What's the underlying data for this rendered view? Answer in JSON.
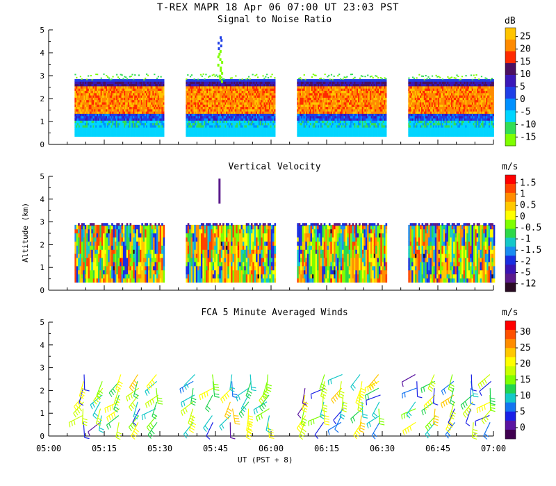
{
  "header": {
    "title": "T-REX   MAPR 18 Apr 06   07:00 UT   23:03   PST"
  },
  "x_axis": {
    "label": "UT  (PST + 8)",
    "range_minutes": [
      0,
      120
    ],
    "tick_labels": [
      "05:00",
      "05:15",
      "05:30",
      "05:45",
      "06:00",
      "06:15",
      "06:30",
      "06:45",
      "07:00"
    ]
  },
  "y_axis_label": "Altitude (km)",
  "colors": {
    "snr": [
      "#7fff00",
      "#33dd55",
      "#00d5ff",
      "#0090ff",
      "#1f3fe6",
      "#3a18b8",
      "#4b1060",
      "#ff2a00",
      "#ff8a00",
      "#ffc400"
    ],
    "vel": [
      "#2a0c24",
      "#5a1a8c",
      "#3a14b4",
      "#1a2ee0",
      "#1a8cf0",
      "#15c8c8",
      "#2ed848",
      "#7fff00",
      "#ffff00",
      "#ffc800",
      "#ff8c00",
      "#ff4400",
      "#ff0000"
    ],
    "wind": [
      "#400050",
      "#5a14a0",
      "#1a20e6",
      "#1474f0",
      "#14c8c8",
      "#20d450",
      "#7fff00",
      "#c8ff00",
      "#ffff00",
      "#ffc800",
      "#ff8c00",
      "#ff5000",
      "#ff0000"
    ]
  },
  "chart_data": [
    {
      "type": "heatmap",
      "title": "Signal to Noise Ratio",
      "xlabel": "UT  (PST + 8)",
      "ylabel": "Altitude (km)",
      "ylim": [
        0,
        5
      ],
      "yticks": [
        0,
        1,
        2,
        3,
        4,
        5
      ],
      "colorbar_unit": "dB",
      "colorbar_labels": [
        "25",
        "20",
        "15",
        "10",
        "5",
        "0",
        "-5",
        "-10",
        "-15"
      ],
      "data_segments_minutes": [
        [
          7,
          31
        ],
        [
          37,
          61
        ],
        [
          67,
          91
        ],
        [
          97,
          121
        ]
      ],
      "data_altitude_range_km": [
        0.35,
        2.8
      ],
      "profile_description_db": [
        {
          "altitude_range_km": [
            0.35,
            1.0
          ],
          "snr_db": -10
        },
        {
          "altitude_range_km": [
            1.0,
            1.3
          ],
          "snr_db": 0
        },
        {
          "altitude_range_km": [
            1.3,
            2.6
          ],
          "snr_db": 15
        },
        {
          "altitude_range_km": [
            2.6,
            2.8
          ],
          "snr_db": 5
        },
        {
          "altitude_range_km": [
            2.8,
            3.0
          ],
          "snr_db": -12
        }
      ]
    },
    {
      "type": "heatmap",
      "title": "Vertical Velocity",
      "xlabel": "UT  (PST + 8)",
      "ylabel": "Altitude (km)",
      "ylim": [
        0,
        5
      ],
      "yticks": [
        0,
        1,
        2,
        3,
        4,
        5
      ],
      "colorbar_unit": "m/s",
      "colorbar_labels": [
        "1.5",
        "1",
        "0.5",
        "0",
        "-0.5",
        "-1",
        "-1.5",
        "-2",
        "-5",
        "-12"
      ],
      "data_segments_minutes": [
        [
          7,
          31
        ],
        [
          37,
          61
        ],
        [
          67,
          91
        ],
        [
          97,
          121
        ]
      ],
      "data_altitude_range_km": [
        0.35,
        2.8
      ],
      "dominant_values_ms": [
        -1.5,
        -0.5,
        0.5
      ]
    },
    {
      "type": "scatter",
      "title": "FCA 5 Minute Averaged Winds",
      "xlabel": "UT  (PST + 8)",
      "ylabel": "Altitude (km)",
      "ylim": [
        0,
        5
      ],
      "yticks": [
        0,
        1,
        2,
        3,
        4,
        5
      ],
      "colorbar_unit": "m/s",
      "colorbar_labels": [
        "30",
        "25",
        "20",
        "15",
        "10",
        "5",
        "0"
      ],
      "wind_barb_times_minutes": [
        10,
        15,
        20,
        25,
        30,
        40,
        45,
        50,
        55,
        60,
        70,
        75,
        80,
        85,
        90,
        100,
        105,
        110,
        115,
        120
      ],
      "wind_barb_altitudes_km": [
        0.6,
        0.9,
        1.2,
        1.5,
        1.8,
        2.1,
        2.4,
        2.7
      ],
      "speed_range_ms": [
        3,
        22
      ]
    }
  ]
}
